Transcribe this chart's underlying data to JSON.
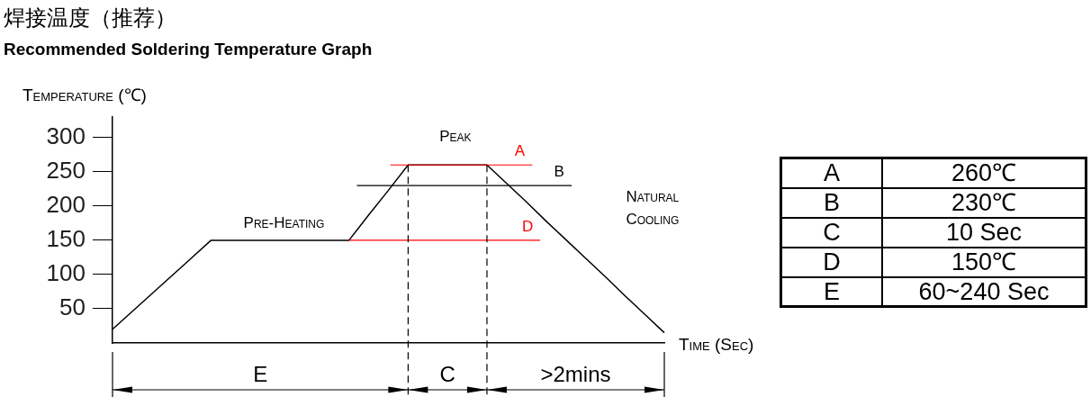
{
  "chart_data": [
    {
      "type": "line",
      "title": "焊接温度（推荐）",
      "subtitle": "Recommended Soldering Temperature Graph",
      "ylabel": "Temperature (℃)",
      "xlabel": "Time (Sec)",
      "categories": [
        null,
        null,
        null,
        null,
        null,
        null,
        null,
        null,
        null,
        null,
        null,
        null,
        null,
        null,
        null,
        null,
        null,
        null,
        null,
        null,
        null,
        null,
        null,
        null,
        null,
        null,
        null,
        null,
        null
      ],
      "series": [
        {
          "color": "#000000",
          "values": [
            20,
            46,
            72,
            98,
            124,
            150,
            150,
            150,
            150,
            150,
            150,
            150,
            150,
            187,
            223,
            260,
            260,
            260,
            260,
            260,
            233,
            206,
            178,
            151,
            124,
            97,
            69,
            42,
            15
          ]
        }
      ],
      "ylim": [
        0,
        330
      ],
      "yticks": [
        50,
        100,
        150,
        200,
        250,
        300
      ],
      "tick_labels": "y",
      "grid": false,
      "legend": false,
      "marker": "none",
      "line_style": "solid",
      "ref_lines": [
        {
          "axis": "y",
          "value": 260,
          "label": "A",
          "color": "#ff0000"
        },
        {
          "axis": "y",
          "value": 230,
          "label": "B",
          "color": "#000000"
        },
        {
          "axis": "y",
          "value": 150,
          "label": "D",
          "color": "#ff0000"
        }
      ],
      "annotations": [
        "Peak",
        "Pre-Heating",
        "Natural Cooling",
        "E",
        "C",
        ">2mins"
      ]
    },
    {
      "type": "other",
      "annotations": [
        "A",
        "260℃",
        "B",
        "230℃",
        "C",
        "10 Sec",
        "D",
        "150℃",
        "E",
        "60~240 Sec"
      ]
    }
  ]
}
